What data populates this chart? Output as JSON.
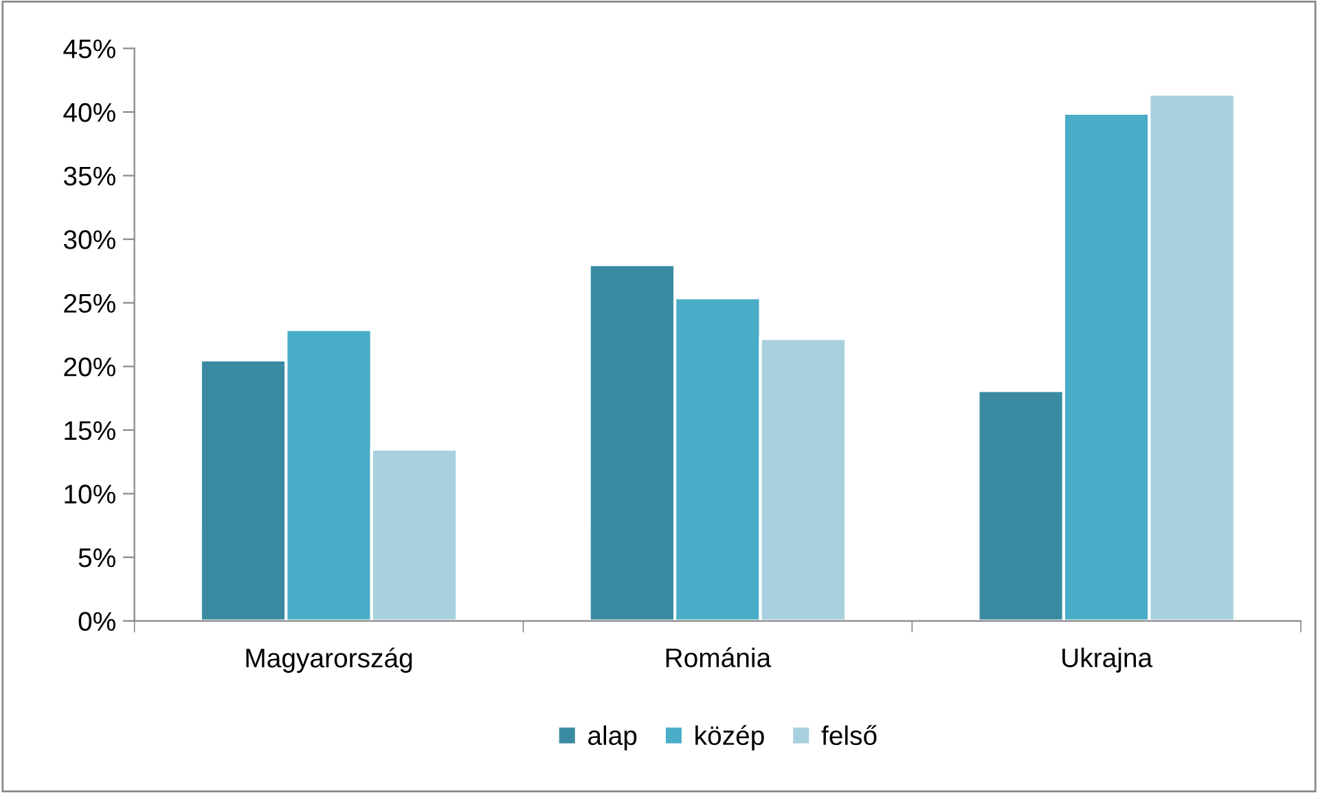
{
  "chart_data": {
    "type": "bar",
    "categories": [
      "Magyarország",
      "Románia",
      "Ukrajna"
    ],
    "series": [
      {
        "name": "alap",
        "color": "#3a8ba1",
        "values": [
          20.5,
          28,
          18.1
        ]
      },
      {
        "name": "közép",
        "color": "#4aadc7",
        "values": [
          22.9,
          25.4,
          39.9
        ]
      },
      {
        "name": "felső",
        "color": "#a8d0de",
        "values": [
          13.5,
          22.2,
          41.4
        ]
      }
    ],
    "ylim": [
      0,
      45
    ],
    "yticks": [
      {
        "value": 0,
        "label": "0%"
      },
      {
        "value": 5,
        "label": "5%"
      },
      {
        "value": 10,
        "label": "10%"
      },
      {
        "value": 15,
        "label": "15%"
      },
      {
        "value": 20,
        "label": "20%"
      },
      {
        "value": 25,
        "label": "25%"
      },
      {
        "value": 30,
        "label": "30%"
      },
      {
        "value": 35,
        "label": "35%"
      },
      {
        "value": 40,
        "label": "40%"
      },
      {
        "value": 45,
        "label": "45%"
      }
    ],
    "grid": false,
    "legend": "bottom"
  }
}
